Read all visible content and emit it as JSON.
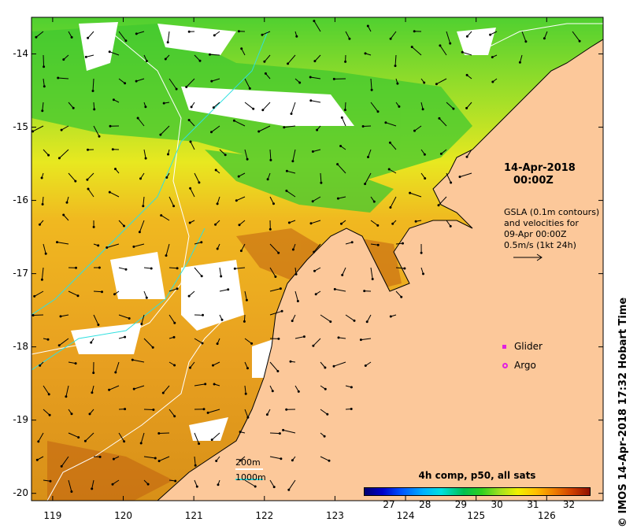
{
  "map": {
    "lon_range": [
      118.7,
      126.8
    ],
    "lat_range": [
      -20.1,
      -13.5
    ],
    "lon_ticks": [
      119,
      120,
      121,
      122,
      123,
      124,
      125,
      126
    ],
    "lat_ticks": [
      -14,
      -15,
      -16,
      -17,
      -18,
      -19,
      -20
    ],
    "lon_tick_labels": [
      "119",
      "120",
      "121",
      "122",
      "123",
      "124",
      "125",
      "126"
    ],
    "lat_tick_labels": [
      "-14",
      "-15",
      "-16",
      "-17",
      "-18",
      "-19",
      "-20"
    ],
    "colors": {
      "land": "#fcc89a",
      "coast": "#000000",
      "contour_200": "#ffffff",
      "contour_1000": "#30e0e0",
      "arrows": "#000000"
    }
  },
  "annotation": {
    "date": "14-Apr-2018",
    "time": "00:00Z",
    "gsla_lines": [
      "GSLA (0.1m contours)",
      "and velocities for",
      "09-Apr 00:00Z",
      "0.5m/s (1kt 24h)"
    ]
  },
  "legend": {
    "glider": "Glider",
    "argo": "Argo",
    "marker_color": "#e020e0"
  },
  "colorbar": {
    "title": "4h comp, p50, all sats",
    "range": [
      26.3,
      32.6
    ],
    "ticks": [
      27,
      28,
      29,
      30,
      31,
      32
    ],
    "tick_labels": [
      "27",
      "28",
      "29",
      "30",
      "31",
      "32"
    ]
  },
  "contours": {
    "label_200": "200m",
    "label_1000": "1000m"
  },
  "footer": "© IMOS 14-Apr-2018 17:32 Hobart Time"
}
